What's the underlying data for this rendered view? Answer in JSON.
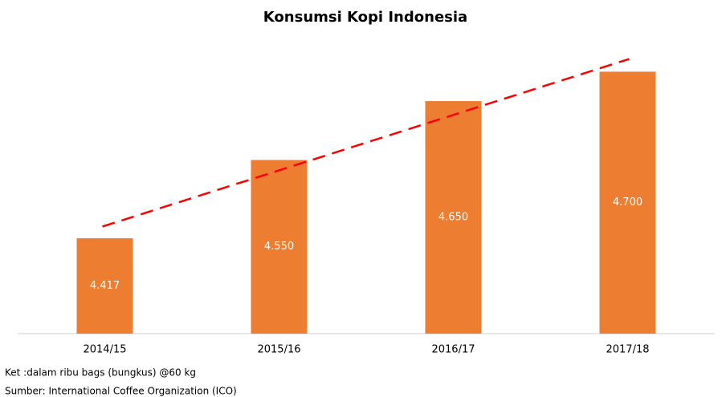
{
  "chart_data": {
    "type": "bar",
    "title": "Konsumsi Kopi Indonesia",
    "categories": [
      "2014/15",
      "2015/16",
      "2016/17",
      "2017/18"
    ],
    "values": [
      4417,
      4550,
      4650,
      4700
    ],
    "value_labels": [
      "4.417",
      "4.550",
      "4.650",
      "4.700"
    ],
    "color": "#ed7d31",
    "ylim": [
      4255,
      4740
    ],
    "trendline": "linear",
    "trendline_color": "#ff0000",
    "notes": [
      "Ket :dalam ribu bags (bungkus) @60 kg",
      "Sumber: International Coffee Organization (ICO)"
    ]
  }
}
